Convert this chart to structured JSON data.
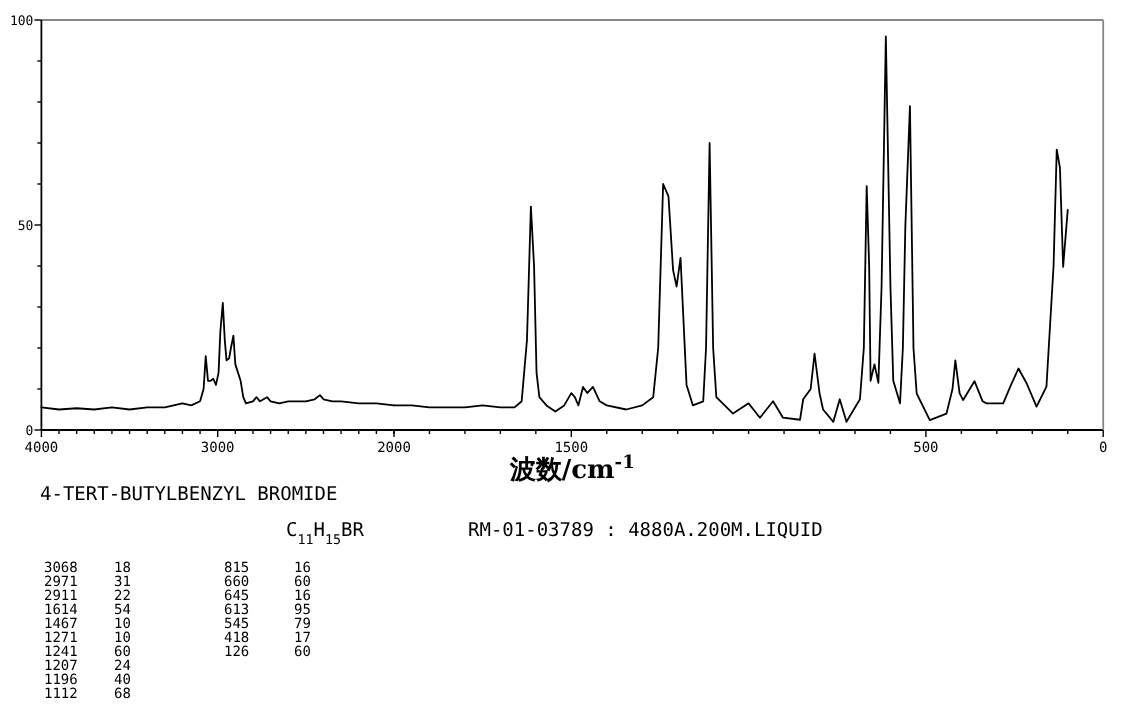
{
  "chart_data": [
    {
      "type": "line",
      "color": "#000000",
      "xlim": [
        4000,
        2000
      ],
      "ylim": [
        0,
        100
      ],
      "xticks": [
        4000,
        {
          "value": 3900,
          "label": null
        },
        {
          "value": 3800,
          "label": null
        },
        {
          "value": 3700,
          "label": null
        },
        {
          "value": 3600,
          "label": null
        },
        {
          "value": 3500,
          "label": null
        },
        {
          "value": 3400,
          "label": null
        },
        {
          "value": 3300,
          "label": null
        },
        {
          "value": 3200,
          "label": null
        },
        {
          "value": 3100,
          "label": null
        },
        3000,
        {
          "value": 2900,
          "label": null
        },
        {
          "value": 2800,
          "label": null
        },
        {
          "value": 2700,
          "label": null
        },
        {
          "value": 2600,
          "label": null
        },
        {
          "value": 2500,
          "label": null
        },
        {
          "value": 2400,
          "label": null
        },
        {
          "value": 2300,
          "label": null
        },
        {
          "value": 2200,
          "label": null
        },
        {
          "value": 2100,
          "label": null
        },
        2000
      ],
      "yticks": [
        0,
        {
          "value": 10,
          "label": null
        },
        {
          "value": 20,
          "label": null
        },
        {
          "value": 30,
          "label": null
        },
        {
          "value": 40,
          "label": null
        },
        50,
        {
          "value": 60,
          "label": null
        },
        {
          "value": 70,
          "label": null
        },
        {
          "value": 80,
          "label": null
        },
        {
          "value": 90,
          "label": null
        },
        100
      ],
      "x": [
        4000,
        3900,
        3800,
        3700,
        3600,
        3500,
        3400,
        3300,
        3250,
        3200,
        3150,
        3100,
        3080,
        3068,
        3055,
        3040,
        3025,
        3010,
        2995,
        2985,
        2971,
        2960,
        2950,
        2935,
        2925,
        2911,
        2900,
        2885,
        2870,
        2855,
        2840,
        2800,
        2780,
        2760,
        2720,
        2700,
        2650,
        2600,
        2500,
        2450,
        2420,
        2400,
        2350,
        2300,
        2200,
        2100,
        2000
      ],
      "values": [
        5.5,
        5,
        5.3,
        5,
        5.5,
        5,
        5.5,
        5.5,
        6,
        6.5,
        6,
        7,
        10,
        18,
        12,
        12,
        12.5,
        11,
        14,
        24,
        31,
        22,
        17,
        17.5,
        20,
        23,
        16,
        14,
        12,
        8,
        6.5,
        7,
        8,
        7,
        8,
        7,
        6.5,
        7,
        7,
        7.5,
        8.5,
        7.5,
        7,
        7,
        6.5,
        6.5,
        6
      ]
    },
    {
      "type": "line",
      "color": "#000000",
      "xlabel": "波数/cm$^{-1}$",
      "xlim": [
        2000,
        0
      ],
      "ylim": [
        0,
        100
      ],
      "tick_labels": "x",
      "xticks": [
        {
          "value": 2000,
          "label": null
        },
        {
          "value": 1900,
          "label": null
        },
        {
          "value": 1800,
          "label": null
        },
        {
          "value": 1700,
          "label": null
        },
        {
          "value": 1600,
          "label": null
        },
        1500,
        {
          "value": 1400,
          "label": null
        },
        {
          "value": 1300,
          "label": null
        },
        {
          "value": 1200,
          "label": null
        },
        {
          "value": 1100,
          "label": null
        },
        {
          "value": 1000,
          "label": null
        },
        {
          "value": 900,
          "label": null
        },
        {
          "value": 800,
          "label": null
        },
        {
          "value": 700,
          "label": null
        },
        {
          "value": 600,
          "label": null
        },
        500,
        {
          "value": 400,
          "label": null
        },
        {
          "value": 300,
          "label": null
        },
        {
          "value": 200,
          "label": null
        },
        {
          "value": 100,
          "label": null
        },
        0
      ],
      "x": [
        2000,
        1950,
        1900,
        1800,
        1750,
        1700,
        1660,
        1640,
        1625,
        1614,
        1605,
        1598,
        1590,
        1570,
        1545,
        1520,
        1500,
        1490,
        1480,
        1467,
        1455,
        1439,
        1420,
        1400,
        1345,
        1300,
        1269,
        1255,
        1241,
        1226,
        1213,
        1203,
        1192,
        1175,
        1157,
        1128,
        1120,
        1110,
        1100,
        1091,
        1044,
        1000,
        968,
        931,
        903,
        855,
        846,
        825,
        814,
        800,
        790,
        761,
        743,
        724,
        686,
        675,
        667,
        660,
        656,
        645,
        634,
        625,
        613,
        600,
        592,
        573,
        565,
        558,
        545,
        535,
        526,
        489,
        442,
        425,
        417,
        405,
        395,
        363,
        340,
        329,
        282,
        260,
        239,
        216,
        188,
        160,
        140,
        131,
        122,
        113,
        100
      ],
      "values": [
        6,
        6,
        5.5,
        5.5,
        6,
        5.5,
        5.5,
        7,
        22,
        54.5,
        40,
        14,
        8,
        6,
        4.5,
        6,
        9,
        8,
        6,
        10.5,
        9,
        10.5,
        7,
        6,
        5,
        6,
        8,
        20,
        60,
        57,
        39,
        35,
        42,
        11,
        6,
        7,
        20,
        70,
        20,
        8,
        4,
        6.5,
        3,
        7,
        3,
        2.5,
        7.5,
        10,
        18.6,
        9,
        5,
        2,
        7.5,
        2,
        7.5,
        20,
        59.5,
        40,
        12,
        16,
        11.5,
        35,
        96,
        35,
        12,
        6.5,
        20,
        49.6,
        79,
        20,
        8.9,
        2.4,
        4,
        10,
        17,
        9,
        7.3,
        11.9,
        7,
        6.5,
        6.5,
        11,
        15,
        11.4,
        5.7,
        10.6,
        40,
        68.4,
        64,
        39.8,
        53.7
      ]
    },
    {
      "type": "other",
      "annotations": [
        "4-TERT-BUTYLBENZYL BROMIDE",
        "C$_{11}$H$_{15}$BR",
        "RM-01-03789 : 4880A.200M.LIQUID",
        "3068 18",
        "2971 31",
        "2911 22",
        "1614 54",
        "1467 10",
        "1271 10",
        "1241 60",
        "1207 24",
        "1196 40",
        "1112 68",
        "815 16",
        "660 60",
        "645 16",
        "613 95",
        "545 79",
        "418 17",
        "126 60"
      ]
    }
  ]
}
